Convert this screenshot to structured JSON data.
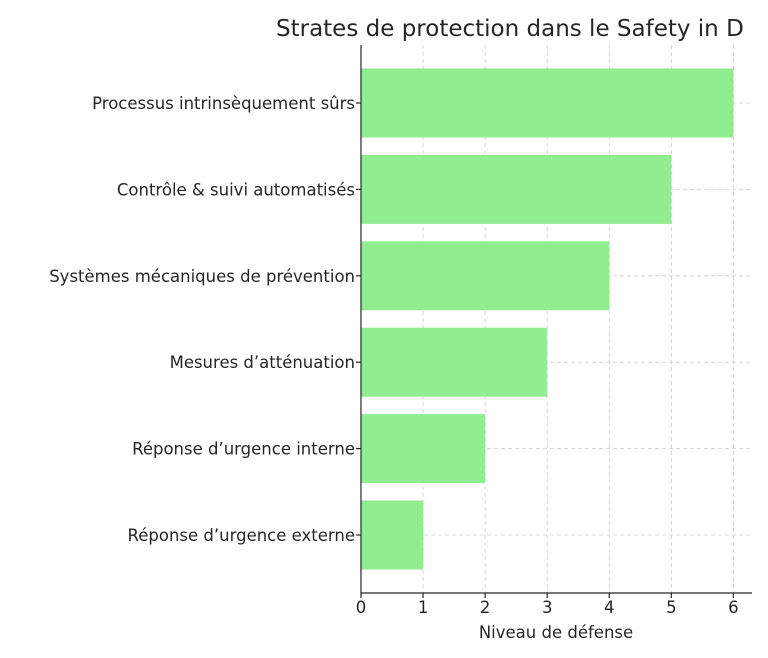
{
  "chart_data": {
    "type": "bar",
    "orientation": "horizontal",
    "title": "Strates de protection dans le Safety in D",
    "xlabel": "Niveau de défense",
    "ylabel": "",
    "categories": [
      "Processus intrinsèquement sûrs",
      "Contrôle & suivi automatisés",
      "Systèmes mécaniques de prévention",
      "Mesures d’atténuation",
      "Réponse d’urgence interne",
      "Réponse d’urgence externe"
    ],
    "values": [
      6,
      5,
      4,
      3,
      2,
      1
    ],
    "xlim": [
      0,
      6.3
    ],
    "xticks": [
      "0",
      "1",
      "2",
      "3",
      "4",
      "5",
      "6"
    ],
    "grid": true,
    "bar_color": "#90ee90"
  }
}
